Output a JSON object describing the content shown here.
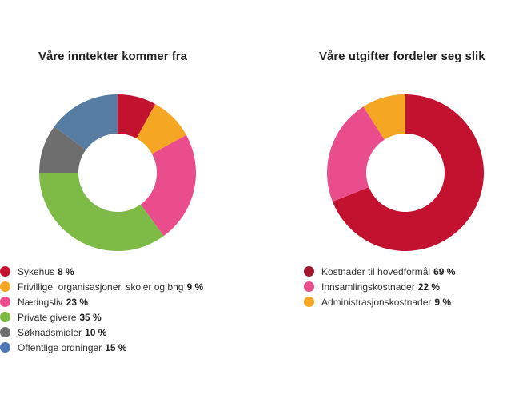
{
  "chart_data": [
    {
      "type": "pie",
      "title": "Våre inntekter kommer fra",
      "categories": [
        "Sykehus",
        "Frivillige  organisasjoner, skoler og bhg",
        "Næringsliv",
        "Private givere",
        "Søknadsmidler",
        "Offentlige ordninger"
      ],
      "values": [
        8,
        9,
        23,
        35,
        10,
        15
      ],
      "value_labels": [
        "8 %",
        "9 %",
        "23 %",
        "35 %",
        "10 %",
        "15 %"
      ],
      "colors": [
        "#c2122f",
        "#f5a623",
        "#ea4d8c",
        "#7dbb46",
        "#6e6e6e",
        "#577ca2"
      ],
      "legend_colors": [
        "#c2122f",
        "#f5a623",
        "#ea4d8c",
        "#7dbb46",
        "#6e6e6e",
        "#4f77b5"
      ],
      "donut": true,
      "legend_position": "bottom-left"
    },
    {
      "type": "pie",
      "title": "Våre utgifter fordeler seg slik",
      "categories": [
        "Kostnader til hovedformål",
        "Innsamlingskostnader",
        "Administrasjonskostnader"
      ],
      "values": [
        69,
        22,
        9
      ],
      "value_labels": [
        "69 %",
        "22 %",
        "9 %"
      ],
      "colors": [
        "#c2122f",
        "#ea4d8c",
        "#f5a623"
      ],
      "legend_colors": [
        "#a1182e",
        "#ea4d8c",
        "#f5a623"
      ],
      "donut": true,
      "legend_position": "bottom-left"
    }
  ]
}
